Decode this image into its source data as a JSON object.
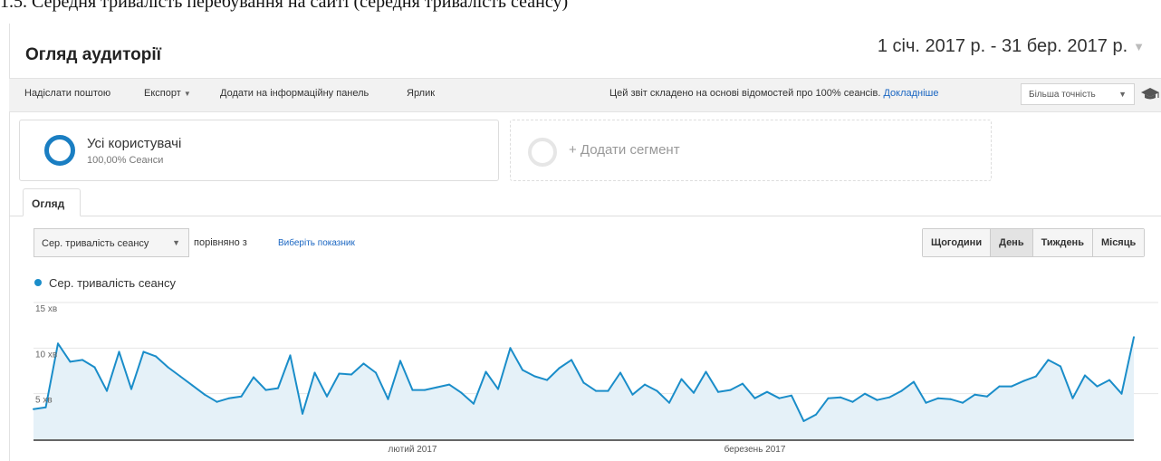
{
  "caption": "1.5. Середня тривалість перебування на сайті (середня тривалість сеансу)",
  "header": {
    "title": "Огляд аудиторії",
    "date_range": "1 січ. 2017 р. - 31 бер. 2017 р."
  },
  "toolbar": {
    "email": "Надіслати поштою",
    "export": "Експорт",
    "dashboard": "Додати на інформаційну панель",
    "shortcut": "Ярлик",
    "report_note": "Цей звіт складено на основі відомостей про 100% сеансів.",
    "learn_more": "Докладніше",
    "precision": "Більша точність"
  },
  "segments": {
    "active_name": "Усі користувачі",
    "active_sub": "100,00% Сеанси",
    "add_label": "+ Додати сегмент"
  },
  "tabs": {
    "overview": "Огляд"
  },
  "controls": {
    "metric": "Сер. тривалість сеансу",
    "compare_label": "порівняно з",
    "choose_metric": "Виберіть показник",
    "granularity": [
      "Щогодини",
      "День",
      "Тиждень",
      "Місяць"
    ],
    "active_granularity": "День"
  },
  "colors": {
    "line": "#1a8dc9",
    "fill": "#e5f1f8",
    "accent": "#1a7ec2"
  },
  "chart_data": {
    "type": "area",
    "title": "",
    "series": [
      {
        "name": "Сер. тривалість сеансу",
        "values": [
          3.3,
          3.5,
          10.5,
          8.5,
          8.7,
          7.9,
          5.3,
          9.6,
          5.5,
          9.6,
          9.1,
          7.9,
          6.9,
          5.9,
          4.9,
          4.1,
          4.5,
          4.7,
          6.8,
          5.4,
          5.6,
          9.2,
          2.8,
          7.3,
          4.7,
          7.2,
          7.1,
          8.3,
          7.3,
          4.4,
          8.6,
          5.4,
          5.4,
          5.7,
          6.0,
          5.1,
          3.9,
          7.4,
          5.5,
          10.0,
          7.6,
          6.9,
          6.5,
          7.8,
          8.7,
          6.2,
          5.3,
          5.3,
          7.3,
          4.9,
          6.0,
          5.3,
          4.0,
          6.6,
          5.1,
          7.4,
          5.2,
          5.4,
          6.1,
          4.5,
          5.2,
          4.5,
          4.8,
          2.0,
          2.7,
          4.5,
          4.6,
          4.1,
          5.0,
          4.3,
          4.6,
          5.3,
          6.3,
          4.0,
          4.5,
          4.4,
          4.0,
          4.9,
          4.7,
          5.8,
          5.8,
          6.4,
          6.9,
          8.7,
          8.0,
          4.5,
          7.0,
          5.8,
          6.5,
          5.0,
          11.2
        ]
      }
    ],
    "ylim": [
      0,
      15
    ],
    "y_ticks": [
      "5 хв",
      "10 хв",
      "15 хв"
    ],
    "y_tick_values": [
      5,
      10,
      15
    ],
    "x_labels": [
      "лютий 2017",
      "березень 2017"
    ],
    "x_label_index": [
      31,
      59
    ],
    "grid": true
  }
}
